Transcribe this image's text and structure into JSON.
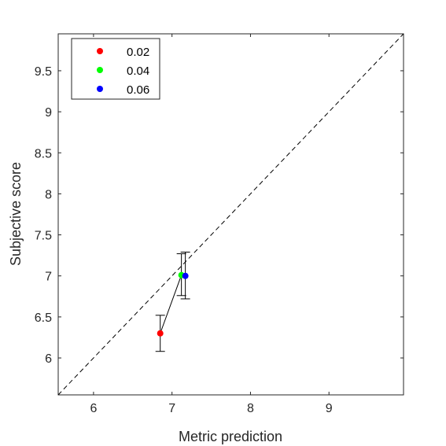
{
  "chart_data": {
    "type": "scatter",
    "xlabel": "Metric prediction",
    "ylabel": "Subjective score",
    "xlim": [
      5.55,
      9.95
    ],
    "ylim": [
      5.55,
      9.95
    ],
    "xticks": [
      6,
      7,
      8,
      9
    ],
    "yticks": [
      6,
      6.5,
      7,
      7.5,
      8,
      8.5,
      9,
      9.5
    ],
    "xtick_labels": [
      "6",
      "7",
      "8",
      "9"
    ],
    "ytick_labels": [
      "6",
      "6.5",
      "7",
      "7.5",
      "8",
      "8.5",
      "9",
      "9.5"
    ],
    "grid": false,
    "legend_position": "top-left",
    "identity_line": {
      "style": "dashed",
      "color": "#000000"
    },
    "connecting_line": {
      "color": "#000000"
    },
    "series": [
      {
        "name": "0.02",
        "color": "#ff0000",
        "x": 6.85,
        "y": 6.3,
        "err_low": 6.08,
        "err_high": 6.52
      },
      {
        "name": "0.04",
        "color": "#00ff00",
        "x": 7.12,
        "y": 7.01,
        "err_low": 6.76,
        "err_high": 7.27
      },
      {
        "name": "0.06",
        "color": "#0000ff",
        "x": 7.17,
        "y": 7.0,
        "err_low": 6.72,
        "err_high": 7.29
      }
    ]
  }
}
